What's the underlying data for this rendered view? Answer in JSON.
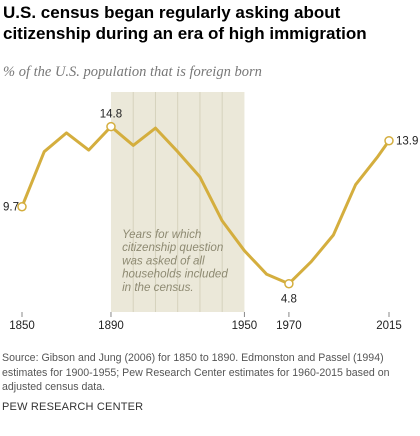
{
  "title": "U.S. census began regularly asking about citizenship during an era of high immigration",
  "subtitle": "% of the U.S. population that is foreign born",
  "note": "Source: Gibson and Jung (2006) for 1850 to 1890. Edmonston and Passel (1994) estimates for 1900-1955; Pew Research Center estimates for 1960-2015 based on adjusted census data.",
  "brand": "PEW RESEARCH CENTER",
  "chart_data": {
    "type": "line",
    "title": "U.S. census began regularly asking about citizenship during an era of high immigration",
    "subtitle": "% of the U.S. population that is foreign born",
    "xlim": [
      1850,
      2015
    ],
    "ylim": [
      3.0,
      17.0
    ],
    "x_ticks": [
      1850,
      1890,
      1950,
      1970,
      2015
    ],
    "grid": false,
    "series": [
      {
        "color": "#d4ae3e",
        "x": [
          1850,
          1860,
          1870,
          1880,
          1890,
          1900,
          1910,
          1920,
          1930,
          1940,
          1950,
          1960,
          1970,
          1980,
          1990,
          2000,
          2010,
          2015
        ],
        "y": [
          9.7,
          13.2,
          14.4,
          13.3,
          14.8,
          13.6,
          14.7,
          13.2,
          11.6,
          8.8,
          6.9,
          5.4,
          4.8,
          6.2,
          7.9,
          11.1,
          12.9,
          13.9
        ]
      }
    ],
    "labeled_points": [
      {
        "x": 1850,
        "value": "9.7"
      },
      {
        "x": 1890,
        "value": "14.8"
      },
      {
        "x": 1970,
        "value": "4.8"
      },
      {
        "x": 2015,
        "value": "13.9"
      }
    ],
    "shaded_band": {
      "x_start": 1890,
      "x_end": 1950,
      "divider_years": [
        1900,
        1910,
        1920,
        1930,
        1940
      ],
      "label": "Years for which citizenship question was asked of all households included in the census.",
      "label_lines": [
        "Years for which",
        "citizenship question",
        "was asked of all",
        "households included",
        "in the census."
      ],
      "fill": "#ebe8d9"
    }
  }
}
